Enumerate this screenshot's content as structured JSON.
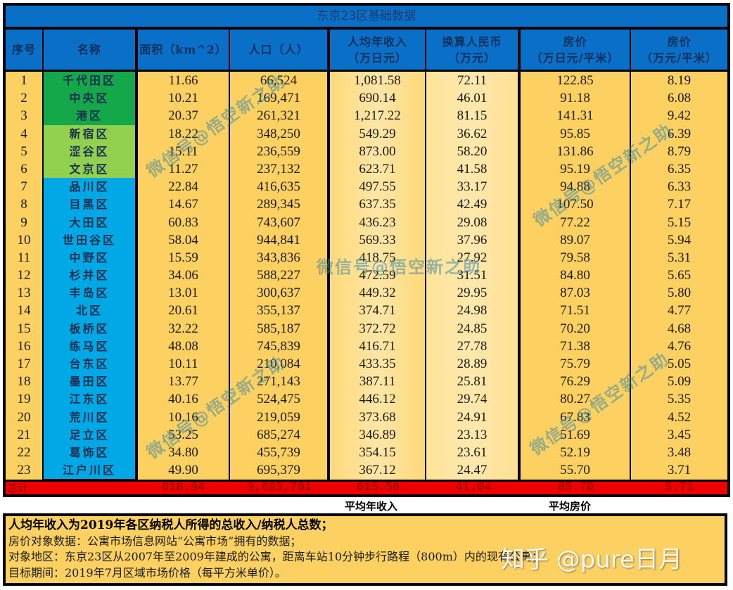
{
  "title": "东京23区基础数据",
  "headers": {
    "seq": "序号",
    "name": "名称",
    "area": "面积（km^2）",
    "population": "人口（人）",
    "income_line1": "人均年收入",
    "income_line2": "（万日元）",
    "rmb_line1": "换算人民币",
    "rmb_line2": "（万元）",
    "price_jpy_line1": "房价",
    "price_jpy_line2": "（万日元/平米）",
    "price_rmb_line1": "房价",
    "price_rmb_line2": "（万元/平米）"
  },
  "colors": {
    "header_blue": "#0a6fc6",
    "name_dark_green": "#14a84a",
    "name_light_green": "#92d050",
    "name_blue": "#00a8e6",
    "cell_yellow": "#fcd162",
    "cell_light_yellow": "#fde49a",
    "total_red": "#ef0000"
  },
  "rows": [
    {
      "seq": "1",
      "name": "千代田区",
      "area": "11.66",
      "population": "66,524",
      "income": "1,081.58",
      "rmb": "72.11",
      "price_jpy": "122.85",
      "price_rmb": "8.19",
      "group": "dark_green"
    },
    {
      "seq": "2",
      "name": "中央区",
      "area": "10.21",
      "population": "169,471",
      "income": "690.14",
      "rmb": "46.01",
      "price_jpy": "91.18",
      "price_rmb": "6.08",
      "group": "dark_green"
    },
    {
      "seq": "3",
      "name": "港区",
      "area": "20.37",
      "population": "261,321",
      "income": "1,217.22",
      "rmb": "81.15",
      "price_jpy": "141.31",
      "price_rmb": "9.42",
      "group": "dark_green"
    },
    {
      "seq": "4",
      "name": "新宿区",
      "area": "18.22",
      "population": "348,250",
      "income": "549.29",
      "rmb": "36.62",
      "price_jpy": "95.85",
      "price_rmb": "6.39",
      "group": "light_green"
    },
    {
      "seq": "5",
      "name": "涩谷区",
      "area": "15.11",
      "population": "236,559",
      "income": "873.00",
      "rmb": "58.20",
      "price_jpy": "131.86",
      "price_rmb": "8.79",
      "group": "light_green"
    },
    {
      "seq": "6",
      "name": "文京区",
      "area": "11.27",
      "population": "237,132",
      "income": "623.71",
      "rmb": "41.58",
      "price_jpy": "95.19",
      "price_rmb": "6.35",
      "group": "light_green"
    },
    {
      "seq": "7",
      "name": "品川区",
      "area": "22.84",
      "population": "416,635",
      "income": "497.55",
      "rmb": "33.17",
      "price_jpy": "94.88",
      "price_rmb": "6.33",
      "group": "blue"
    },
    {
      "seq": "8",
      "name": "目黑区",
      "area": "14.67",
      "population": "289,345",
      "income": "637.35",
      "rmb": "42.49",
      "price_jpy": "107.50",
      "price_rmb": "7.17",
      "group": "blue"
    },
    {
      "seq": "9",
      "name": "大田区",
      "area": "60.83",
      "population": "743,607",
      "income": "436.23",
      "rmb": "29.08",
      "price_jpy": "77.22",
      "price_rmb": "5.15",
      "group": "blue"
    },
    {
      "seq": "10",
      "name": "世田谷区",
      "area": "58.04",
      "population": "944,841",
      "income": "569.33",
      "rmb": "37.96",
      "price_jpy": "89.07",
      "price_rmb": "5.94",
      "group": "blue"
    },
    {
      "seq": "11",
      "name": "中野区",
      "area": "15.59",
      "population": "343,836",
      "income": "418.75",
      "rmb": "27.92",
      "price_jpy": "79.58",
      "price_rmb": "5.31",
      "group": "blue"
    },
    {
      "seq": "12",
      "name": "杉并区",
      "area": "34.06",
      "population": "588,227",
      "income": "472.59",
      "rmb": "31.51",
      "price_jpy": "84.80",
      "price_rmb": "5.65",
      "group": "blue"
    },
    {
      "seq": "13",
      "name": "丰岛区",
      "area": "13.01",
      "population": "300,637",
      "income": "449.32",
      "rmb": "29.95",
      "price_jpy": "87.03",
      "price_rmb": "5.80",
      "group": "blue"
    },
    {
      "seq": "14",
      "name": "北区",
      "area": "20.61",
      "population": "355,137",
      "income": "374.71",
      "rmb": "24.98",
      "price_jpy": "71.51",
      "price_rmb": "4.77",
      "group": "blue"
    },
    {
      "seq": "15",
      "name": "板桥区",
      "area": "32.22",
      "population": "585,187",
      "income": "372.72",
      "rmb": "24.85",
      "price_jpy": "70.20",
      "price_rmb": "4.68",
      "group": "blue"
    },
    {
      "seq": "16",
      "name": "练马区",
      "area": "48.08",
      "population": "745,839",
      "income": "416.71",
      "rmb": "27.78",
      "price_jpy": "71.38",
      "price_rmb": "4.76",
      "group": "blue"
    },
    {
      "seq": "17",
      "name": "台东区",
      "area": "10.11",
      "population": "210,084",
      "income": "433.35",
      "rmb": "28.89",
      "price_jpy": "75.79",
      "price_rmb": "5.05",
      "group": "blue"
    },
    {
      "seq": "18",
      "name": "墨田区",
      "area": "13.77",
      "population": "271,143",
      "income": "387.11",
      "rmb": "25.81",
      "price_jpy": "76.29",
      "price_rmb": "5.09",
      "group": "blue"
    },
    {
      "seq": "19",
      "name": "江东区",
      "area": "40.16",
      "population": "524,475",
      "income": "446.12",
      "rmb": "29.74",
      "price_jpy": "80.27",
      "price_rmb": "5.35",
      "group": "blue"
    },
    {
      "seq": "20",
      "name": "荒川区",
      "area": "10.16",
      "population": "219,059",
      "income": "373.68",
      "rmb": "24.91",
      "price_jpy": "67.83",
      "price_rmb": "4.52",
      "group": "blue"
    },
    {
      "seq": "21",
      "name": "足立区",
      "area": "53.25",
      "population": "685,274",
      "income": "346.89",
      "rmb": "23.13",
      "price_jpy": "51.69",
      "price_rmb": "3.45",
      "group": "blue"
    },
    {
      "seq": "22",
      "name": "葛饰区",
      "area": "34.80",
      "population": "455,739",
      "income": "354.15",
      "rmb": "23.61",
      "price_jpy": "52.19",
      "price_rmb": "3.48",
      "group": "blue"
    },
    {
      "seq": "23",
      "name": "江户川区",
      "area": "49.90",
      "population": "695,379",
      "income": "367.12",
      "rmb": "24.47",
      "price_jpy": "55.70",
      "price_rmb": "3.71",
      "group": "blue"
    }
  ],
  "total": {
    "label": "总计",
    "area": "618.94",
    "population": "9,693,701",
    "income": "615.56",
    "rmb": "41.04",
    "price_jpy": "85.70",
    "price_rmb": "5.71"
  },
  "below_labels": {
    "avg_income": "平均年收入",
    "avg_price": "平均房价"
  },
  "notes": [
    "人均年收入为2019年各区纳税人所得的总收入/纳税人总数；",
    "房价对象数据：公寓市场信息网站“公寓市场”拥有的数据；",
    "对象地区：东京23区从2007年至2009年建成的公寓，距离车站10分钟步行路程（800m）内的现有公寓；",
    "目标期间：2019年7月区域市场价格（每平方米单价）。"
  ],
  "watermarks": {
    "wechat": "微信号@悟空新之助",
    "zhihu": "知乎 @pure日月"
  }
}
